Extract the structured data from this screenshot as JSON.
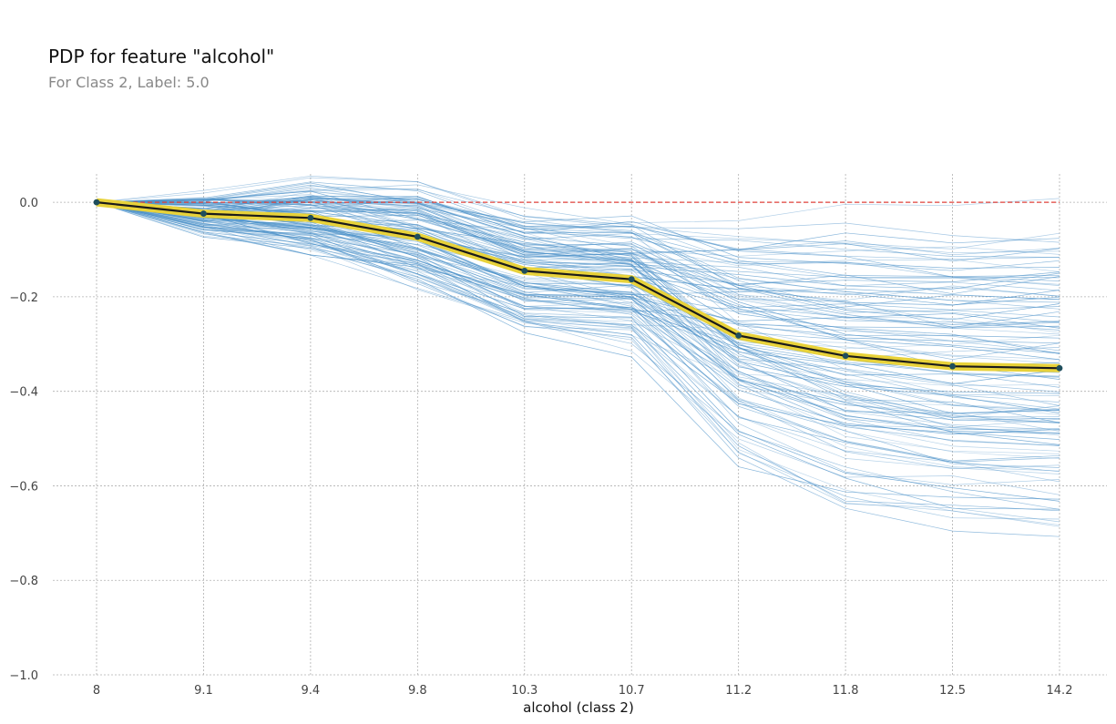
{
  "chart_data": {
    "type": "line",
    "title": "PDP for feature \"alcohol\"",
    "subtitle": "For Class 2, Label: 5.0",
    "xlabel": "alcohol (class 2)",
    "ylabel": "",
    "categories": [
      "8",
      "9.1",
      "9.4",
      "9.8",
      "10.3",
      "10.7",
      "11.2",
      "11.8",
      "12.5",
      "14.2"
    ],
    "yticks": [
      "0.0",
      "−0.2",
      "−0.4",
      "−0.6",
      "−0.8",
      "−1.0"
    ],
    "ytick_values": [
      0.0,
      -0.2,
      -0.4,
      -0.6,
      -0.8,
      -1.0
    ],
    "ylim": [
      -1.0,
      0.06
    ],
    "grid": true,
    "legend": "none",
    "series": [
      {
        "name": "",
        "values": [
          0.0,
          -0.024,
          -0.033,
          -0.073,
          -0.145,
          -0.163,
          -0.282,
          -0.325,
          -0.347,
          -0.351
        ]
      }
    ],
    "reference_line": {
      "y": 0.0,
      "color": "#e0413a"
    },
    "ice_line_count": 120,
    "colors": {
      "pdp_line": "#1a1a1a",
      "pdp_band": "#e8d23a",
      "pdp_marker": "#1f4e5c",
      "ice_lines": "#4a90c8",
      "grid": "#b0b0b0"
    }
  }
}
